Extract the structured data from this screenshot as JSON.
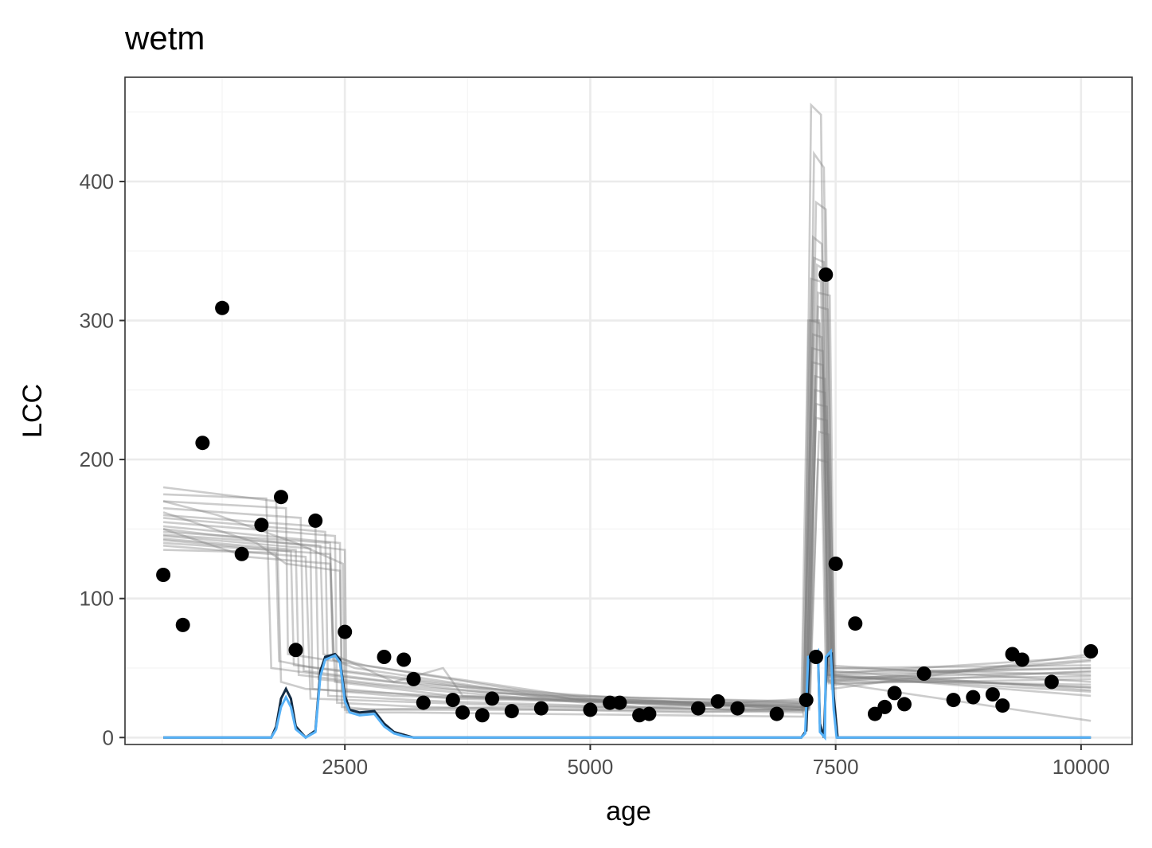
{
  "chart_data": {
    "type": "scatter",
    "title": "wetm",
    "xlabel": "age",
    "ylabel": "LCC",
    "xlim": [
      260,
      10520
    ],
    "ylim": [
      -5,
      475
    ],
    "x_ticks": [
      2500,
      5000,
      7500,
      10000
    ],
    "y_ticks": [
      0,
      100,
      200,
      300,
      400
    ],
    "grid": true,
    "legend": "none",
    "colors": {
      "points": "#000000",
      "ensemble": "#808080",
      "density_dark": "#132B43",
      "density_light": "#56B1F7",
      "grid_major": "#EBEBEB",
      "grid_minor": "#F5F5F5",
      "panel_border": "#333333"
    },
    "points": [
      {
        "x": 650,
        "y": 117
      },
      {
        "x": 850,
        "y": 81
      },
      {
        "x": 1050,
        "y": 212
      },
      {
        "x": 1250,
        "y": 309
      },
      {
        "x": 1450,
        "y": 132
      },
      {
        "x": 1650,
        "y": 153
      },
      {
        "x": 1850,
        "y": 173
      },
      {
        "x": 2000,
        "y": 63
      },
      {
        "x": 2200,
        "y": 156
      },
      {
        "x": 2500,
        "y": 76
      },
      {
        "x": 2900,
        "y": 58
      },
      {
        "x": 3100,
        "y": 56
      },
      {
        "x": 3200,
        "y": 42
      },
      {
        "x": 3300,
        "y": 25
      },
      {
        "x": 3600,
        "y": 27
      },
      {
        "x": 3700,
        "y": 18
      },
      {
        "x": 3900,
        "y": 16
      },
      {
        "x": 4000,
        "y": 28
      },
      {
        "x": 4200,
        "y": 19
      },
      {
        "x": 4500,
        "y": 21
      },
      {
        "x": 5000,
        "y": 20
      },
      {
        "x": 5200,
        "y": 25
      },
      {
        "x": 5300,
        "y": 25
      },
      {
        "x": 5500,
        "y": 16
      },
      {
        "x": 5600,
        "y": 17
      },
      {
        "x": 6100,
        "y": 21
      },
      {
        "x": 6300,
        "y": 26
      },
      {
        "x": 6500,
        "y": 21
      },
      {
        "x": 6900,
        "y": 17
      },
      {
        "x": 7200,
        "y": 27
      },
      {
        "x": 7300,
        "y": 58
      },
      {
        "x": 7400,
        "y": 333
      },
      {
        "x": 7500,
        "y": 125
      },
      {
        "x": 7700,
        "y": 82
      },
      {
        "x": 7900,
        "y": 17
      },
      {
        "x": 8000,
        "y": 22
      },
      {
        "x": 8100,
        "y": 32
      },
      {
        "x": 8200,
        "y": 24
      },
      {
        "x": 8400,
        "y": 46
      },
      {
        "x": 8700,
        "y": 27
      },
      {
        "x": 8900,
        "y": 29
      },
      {
        "x": 9100,
        "y": 31
      },
      {
        "x": 9200,
        "y": 23
      },
      {
        "x": 9300,
        "y": 60
      },
      {
        "x": 9400,
        "y": 56
      },
      {
        "x": 9700,
        "y": 40
      },
      {
        "x": 10100,
        "y": 62
      }
    ],
    "ensemble": [
      [
        [
          650,
          180
        ],
        [
          1800,
          170
        ],
        [
          1850,
          40
        ],
        [
          2100,
          35
        ],
        [
          3500,
          30
        ],
        [
          7150,
          20
        ],
        [
          7220,
          300
        ],
        [
          7330,
          300
        ],
        [
          7400,
          45
        ],
        [
          10100,
          50
        ]
      ],
      [
        [
          650,
          175
        ],
        [
          1700,
          172
        ],
        [
          1750,
          50
        ],
        [
          2300,
          45
        ],
        [
          4000,
          32
        ],
        [
          7180,
          25
        ],
        [
          7250,
          455
        ],
        [
          7350,
          448
        ],
        [
          7420,
          40
        ],
        [
          10100,
          12
        ]
      ],
      [
        [
          650,
          170
        ],
        [
          1900,
          165
        ],
        [
          1920,
          60
        ],
        [
          2400,
          55
        ],
        [
          5000,
          28
        ],
        [
          7200,
          22
        ],
        [
          7280,
          420
        ],
        [
          7380,
          410
        ],
        [
          7450,
          50
        ],
        [
          10100,
          45
        ]
      ],
      [
        [
          650,
          165
        ],
        [
          2050,
          158
        ],
        [
          2080,
          48
        ],
        [
          3000,
          40
        ],
        [
          6000,
          25
        ],
        [
          7210,
          20
        ],
        [
          7300,
          385
        ],
        [
          7400,
          380
        ],
        [
          7460,
          35
        ],
        [
          10100,
          60
        ]
      ],
      [
        [
          650,
          160
        ],
        [
          2200,
          152
        ],
        [
          2230,
          42
        ],
        [
          3200,
          35
        ],
        [
          5500,
          22
        ],
        [
          7190,
          24
        ],
        [
          7270,
          360
        ],
        [
          7360,
          355
        ],
        [
          7430,
          45
        ],
        [
          10100,
          30
        ]
      ],
      [
        [
          650,
          158
        ],
        [
          2300,
          148
        ],
        [
          2330,
          30
        ],
        [
          3500,
          26
        ],
        [
          6500,
          20
        ],
        [
          7220,
          21
        ],
        [
          7310,
          340
        ],
        [
          7420,
          335
        ],
        [
          7480,
          40
        ],
        [
          10100,
          55
        ]
      ],
      [
        [
          650,
          155
        ],
        [
          2400,
          145
        ],
        [
          2420,
          25
        ],
        [
          3300,
          22
        ],
        [
          6000,
          18
        ],
        [
          7230,
          20
        ],
        [
          7320,
          320
        ],
        [
          7440,
          318
        ],
        [
          7490,
          38
        ],
        [
          10100,
          48
        ]
      ],
      [
        [
          650,
          152
        ],
        [
          2450,
          140
        ],
        [
          2470,
          22
        ],
        [
          2800,
          20
        ],
        [
          5200,
          20
        ],
        [
          7160,
          18
        ],
        [
          7240,
          300
        ],
        [
          7340,
          298
        ],
        [
          7410,
          52
        ],
        [
          10100,
          40
        ]
      ],
      [
        [
          650,
          150
        ],
        [
          2500,
          135
        ],
        [
          2520,
          18
        ],
        [
          3100,
          18
        ],
        [
          5800,
          16
        ],
        [
          7170,
          15
        ],
        [
          7260,
          280
        ],
        [
          7370,
          278
        ],
        [
          7440,
          44
        ],
        [
          10100,
          36
        ]
      ],
      [
        [
          650,
          148
        ],
        [
          2350,
          140
        ],
        [
          2380,
          56
        ],
        [
          2600,
          50
        ],
        [
          4500,
          30
        ],
        [
          7200,
          26
        ],
        [
          7290,
          260
        ],
        [
          7390,
          258
        ],
        [
          7460,
          46
        ],
        [
          10100,
          58
        ]
      ],
      [
        [
          650,
          146
        ],
        [
          2250,
          138
        ],
        [
          2280,
          60
        ],
        [
          2700,
          52
        ],
        [
          5000,
          26
        ],
        [
          7220,
          25
        ],
        [
          7300,
          240
        ],
        [
          7410,
          238
        ],
        [
          7470,
          42
        ],
        [
          10100,
          44
        ]
      ],
      [
        [
          650,
          145
        ],
        [
          2150,
          136
        ],
        [
          2170,
          35
        ],
        [
          3000,
          30
        ],
        [
          6200,
          24
        ],
        [
          7240,
          28
        ],
        [
          7330,
          220
        ],
        [
          7430,
          218
        ],
        [
          7490,
          50
        ],
        [
          10100,
          52
        ]
      ],
      [
        [
          650,
          143
        ],
        [
          2000,
          135
        ],
        [
          2030,
          45
        ],
        [
          2900,
          38
        ],
        [
          5600,
          24
        ],
        [
          7180,
          22
        ],
        [
          7250,
          330
        ],
        [
          7350,
          328
        ],
        [
          7420,
          41
        ],
        [
          10100,
          38
        ]
      ],
      [
        [
          650,
          142
        ],
        [
          1950,
          134
        ],
        [
          1980,
          52
        ],
        [
          2500,
          48
        ],
        [
          4800,
          28
        ],
        [
          7210,
          24
        ],
        [
          7280,
          345
        ],
        [
          7380,
          342
        ],
        [
          7450,
          48
        ],
        [
          10100,
          34
        ]
      ],
      [
        [
          650,
          140
        ],
        [
          2350,
          132
        ],
        [
          2400,
          40
        ],
        [
          3600,
          30
        ],
        [
          6800,
          22
        ],
        [
          7230,
          21
        ],
        [
          7320,
          310
        ],
        [
          7420,
          308
        ],
        [
          7480,
          43
        ],
        [
          10100,
          47
        ]
      ],
      [
        [
          650,
          138
        ],
        [
          2100,
          130
        ],
        [
          2150,
          28
        ],
        [
          3800,
          24
        ],
        [
          6400,
          20
        ],
        [
          7190,
          19
        ],
        [
          7270,
          290
        ],
        [
          7360,
          288
        ],
        [
          7430,
          39
        ],
        [
          10100,
          42
        ]
      ],
      [
        [
          650,
          162
        ],
        [
          1600,
          140
        ],
        [
          1900,
          125
        ],
        [
          2450,
          120
        ],
        [
          2470,
          35
        ],
        [
          3600,
          28
        ],
        [
          7200,
          22
        ],
        [
          7290,
          250
        ],
        [
          7390,
          248
        ],
        [
          7460,
          47
        ],
        [
          10100,
          50
        ]
      ],
      [
        [
          650,
          170
        ],
        [
          1200,
          160
        ],
        [
          2000,
          140
        ],
        [
          2480,
          125
        ],
        [
          2500,
          20
        ],
        [
          4200,
          22
        ],
        [
          7170,
          20
        ],
        [
          7260,
          270
        ],
        [
          7370,
          268
        ],
        [
          7440,
          41
        ],
        [
          10100,
          56
        ]
      ],
      [
        [
          650,
          150
        ],
        [
          1500,
          130
        ],
        [
          2350,
          125
        ],
        [
          2380,
          60
        ],
        [
          3000,
          40
        ],
        [
          3500,
          50
        ],
        [
          3700,
          30
        ],
        [
          7210,
          23
        ],
        [
          7300,
          230
        ],
        [
          7410,
          228
        ],
        [
          7470,
          45
        ],
        [
          10100,
          36
        ]
      ],
      [
        [
          650,
          135
        ],
        [
          1800,
          133
        ],
        [
          1830,
          55
        ],
        [
          2200,
          50
        ],
        [
          4600,
          28
        ],
        [
          7230,
          22
        ],
        [
          7320,
          200
        ],
        [
          7420,
          198
        ],
        [
          7480,
          44
        ],
        [
          10100,
          33
        ]
      ]
    ],
    "density_dark": [
      [
        650,
        0
      ],
      [
        1750,
        0
      ],
      [
        1800,
        8
      ],
      [
        1850,
        28
      ],
      [
        1900,
        35
      ],
      [
        1950,
        28
      ],
      [
        2000,
        8
      ],
      [
        2100,
        0
      ],
      [
        2200,
        5
      ],
      [
        2250,
        48
      ],
      [
        2300,
        58
      ],
      [
        2400,
        60
      ],
      [
        2450,
        56
      ],
      [
        2500,
        30
      ],
      [
        2550,
        20
      ],
      [
        2650,
        18
      ],
      [
        2800,
        19
      ],
      [
        2900,
        10
      ],
      [
        3000,
        4
      ],
      [
        3100,
        2
      ],
      [
        3200,
        0
      ],
      [
        7150,
        0
      ],
      [
        7200,
        5
      ],
      [
        7230,
        55
      ],
      [
        7300,
        56
      ],
      [
        7320,
        60
      ],
      [
        7340,
        10
      ],
      [
        7380,
        0
      ],
      [
        7410,
        58
      ],
      [
        7460,
        60
      ],
      [
        7480,
        30
      ],
      [
        7520,
        0
      ],
      [
        10100,
        0
      ]
    ],
    "density_light": [
      [
        650,
        0
      ],
      [
        1750,
        0
      ],
      [
        1800,
        6
      ],
      [
        1850,
        22
      ],
      [
        1900,
        29
      ],
      [
        1950,
        22
      ],
      [
        2000,
        6
      ],
      [
        2100,
        0
      ],
      [
        2200,
        4
      ],
      [
        2250,
        44
      ],
      [
        2300,
        56
      ],
      [
        2400,
        59
      ],
      [
        2450,
        54
      ],
      [
        2500,
        26
      ],
      [
        2550,
        18
      ],
      [
        2650,
        16
      ],
      [
        2800,
        17
      ],
      [
        2900,
        8
      ],
      [
        3000,
        3
      ],
      [
        3100,
        1
      ],
      [
        3200,
        0
      ],
      [
        7150,
        0
      ],
      [
        7190,
        3
      ],
      [
        7220,
        58
      ],
      [
        7300,
        60
      ],
      [
        7320,
        62
      ],
      [
        7340,
        4
      ],
      [
        7390,
        0
      ],
      [
        7400,
        58
      ],
      [
        7450,
        62
      ],
      [
        7480,
        20
      ],
      [
        7510,
        0
      ],
      [
        10100,
        0
      ]
    ]
  }
}
